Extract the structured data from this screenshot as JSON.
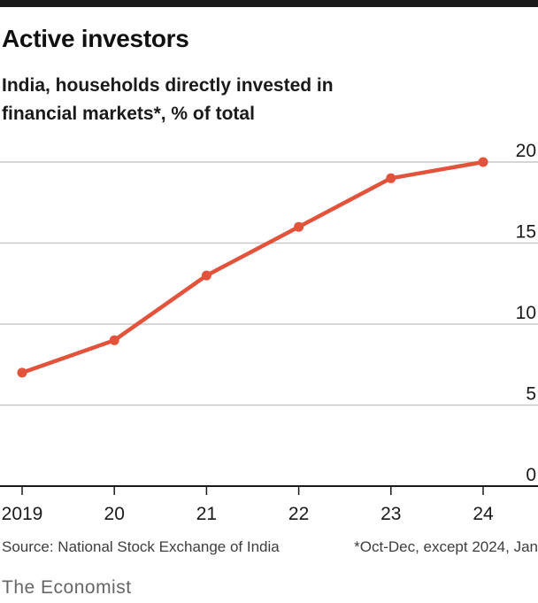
{
  "header": {
    "title": "Active investors",
    "subtitle": "India, households directly invested in financial markets*, % of total"
  },
  "footer": {
    "source": "Source: National Stock Exchange of India",
    "note": "*Oct-Dec, except 2024, Jan",
    "brand": "The Economist"
  },
  "colors": {
    "line": "#e3523a",
    "grid": "#c8c8c8",
    "axis": "#1a1a1a",
    "accent_bar": "#1a1a1a"
  },
  "chart_data": {
    "type": "line",
    "title": "Active investors",
    "subtitle": "India, households directly invested in financial markets*, % of total",
    "categories": [
      "2019",
      "20",
      "21",
      "22",
      "23",
      "24"
    ],
    "x": [
      2019,
      2020,
      2021,
      2022,
      2023,
      2024
    ],
    "series": [
      {
        "values": [
          7,
          9,
          13,
          16,
          19,
          20
        ]
      }
    ],
    "ylim": [
      0,
      20
    ],
    "yticks": [
      "0",
      "5",
      "10",
      "15",
      "20"
    ],
    "y_axis_side": "right",
    "grid": true,
    "legend": "none"
  }
}
